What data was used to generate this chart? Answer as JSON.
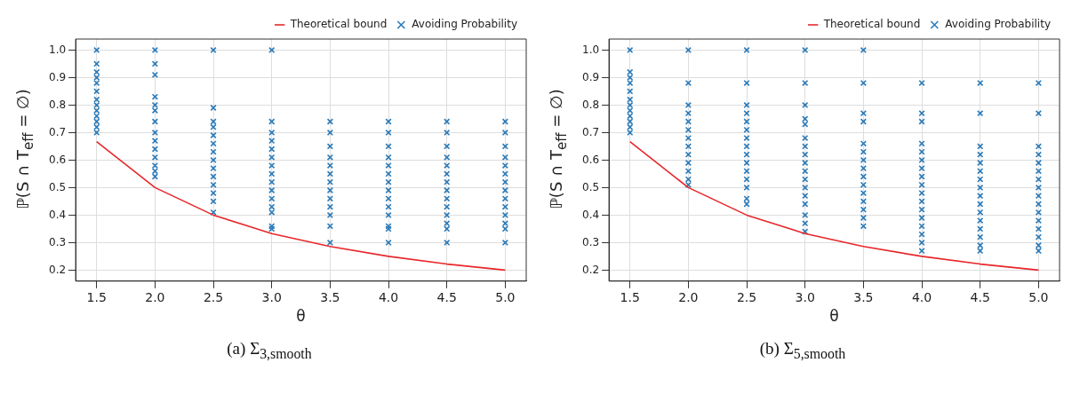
{
  "chart_data": [
    {
      "type": "scatter",
      "title": "(a) Σ$_{3,smooth}$",
      "xlabel": "θ",
      "ylabel": "ℙ(S ∩ T$_{eff}$ = ∅)",
      "xlim": [
        1.32,
        5.18
      ],
      "ylim": [
        0.16,
        1.04
      ],
      "xticks": [
        1.5,
        {
          "value": 2,
          "label": "2.0"
        },
        2.5,
        {
          "value": 3,
          "label": "3.0"
        },
        3.5,
        {
          "value": 4,
          "label": "4.0"
        },
        4.5,
        {
          "value": 5,
          "label": "5.0"
        }
      ],
      "yticks": [
        0.2,
        0.3,
        0.4,
        0.5,
        0.6,
        0.7,
        0.8,
        0.9,
        {
          "value": 1,
          "label": "1.0"
        }
      ],
      "grid": true,
      "legend": "top right",
      "series": [
        {
          "name": "Theoretical bound",
          "type": "line",
          "color": "#e8262b",
          "marker": "none",
          "x": [
            1.5,
            2,
            2.5,
            3,
            3.5,
            4,
            4.5,
            5
          ],
          "values": [
            0.667,
            0.5,
            0.4,
            0.333,
            0.286,
            0.25,
            0.222,
            0.2
          ]
        },
        {
          "name": "Avoiding Probability",
          "color": "#2a7ab8",
          "marker": "cross",
          "x": [
            1.5,
            1.5,
            1.5,
            1.5,
            1.5,
            1.5,
            1.5,
            1.5,
            1.5,
            1.5,
            1.5,
            1.5,
            1.5,
            2,
            2,
            2,
            2,
            2,
            2,
            2,
            2,
            2,
            2,
            2,
            2,
            2,
            2,
            2.5,
            2.5,
            2.5,
            2.5,
            2.5,
            2.5,
            2.5,
            2.5,
            2.5,
            2.5,
            2.5,
            2.5,
            2.5,
            2.5,
            3,
            3,
            3,
            3,
            3,
            3,
            3,
            3,
            3,
            3,
            3,
            3,
            3,
            3,
            3,
            3.5,
            3.5,
            3.5,
            3.5,
            3.5,
            3.5,
            3.5,
            3.5,
            3.5,
            3.5,
            3.5,
            3.5,
            3.5,
            4,
            4,
            4,
            4,
            4,
            4,
            4,
            4,
            4,
            4,
            4,
            4,
            4,
            4,
            4.5,
            4.5,
            4.5,
            4.5,
            4.5,
            4.5,
            4.5,
            4.5,
            4.5,
            4.5,
            4.5,
            4.5,
            4.5,
            4.5,
            5,
            5,
            5,
            5,
            5,
            5,
            5,
            5,
            5,
            5,
            5,
            5,
            5,
            5
          ],
          "values": [
            1.0,
            0.95,
            0.92,
            0.9,
            0.88,
            0.85,
            0.82,
            0.8,
            0.78,
            0.76,
            0.74,
            0.72,
            0.7,
            1.0,
            0.95,
            0.91,
            0.83,
            0.8,
            0.78,
            0.74,
            0.7,
            0.67,
            0.64,
            0.61,
            0.58,
            0.56,
            0.54,
            1.0,
            0.79,
            0.74,
            0.72,
            0.69,
            0.66,
            0.63,
            0.6,
            0.57,
            0.54,
            0.51,
            0.48,
            0.45,
            0.41,
            1.0,
            0.74,
            0.7,
            0.67,
            0.64,
            0.61,
            0.58,
            0.55,
            0.52,
            0.49,
            0.46,
            0.43,
            0.41,
            0.36,
            0.35,
            0.74,
            0.7,
            0.65,
            0.61,
            0.58,
            0.55,
            0.52,
            0.49,
            0.46,
            0.43,
            0.4,
            0.36,
            0.3,
            0.74,
            0.7,
            0.65,
            0.61,
            0.58,
            0.55,
            0.52,
            0.49,
            0.46,
            0.43,
            0.4,
            0.36,
            0.35,
            0.3,
            0.74,
            0.7,
            0.65,
            0.61,
            0.58,
            0.55,
            0.52,
            0.49,
            0.46,
            0.43,
            0.4,
            0.37,
            0.35,
            0.3,
            0.74,
            0.7,
            0.65,
            0.61,
            0.58,
            0.55,
            0.52,
            0.49,
            0.46,
            0.43,
            0.4,
            0.37,
            0.35,
            0.3
          ]
        }
      ]
    },
    {
      "type": "scatter",
      "title": "(b) Σ$_{5,smooth}$",
      "xlabel": "θ",
      "ylabel": "ℙ(S ∩ T$_{eff}$ = ∅)",
      "xlim": [
        1.32,
        5.18
      ],
      "ylim": [
        0.16,
        1.04
      ],
      "xticks": [
        1.5,
        {
          "value": 2,
          "label": "2.0"
        },
        2.5,
        {
          "value": 3,
          "label": "3.0"
        },
        3.5,
        {
          "value": 4,
          "label": "4.0"
        },
        4.5,
        {
          "value": 5,
          "label": "5.0"
        }
      ],
      "yticks": [
        0.2,
        0.3,
        0.4,
        0.5,
        0.6,
        0.7,
        0.8,
        0.9,
        {
          "value": 1,
          "label": "1.0"
        }
      ],
      "grid": true,
      "legend": "top right",
      "series": [
        {
          "name": "Theoretical bound",
          "type": "line",
          "color": "#e8262b",
          "marker": "none",
          "x": [
            1.5,
            2,
            2.5,
            3,
            3.5,
            4,
            4.5,
            5
          ],
          "values": [
            0.667,
            0.5,
            0.4,
            0.333,
            0.286,
            0.25,
            0.222,
            0.2
          ]
        },
        {
          "name": "Avoiding Probability",
          "color": "#2a7ab8",
          "marker": "cross",
          "x": [
            1.5,
            1.5,
            1.5,
            1.5,
            1.5,
            1.5,
            1.5,
            1.5,
            1.5,
            1.5,
            1.5,
            1.5,
            2,
            2,
            2,
            2,
            2,
            2,
            2,
            2,
            2,
            2,
            2,
            2,
            2,
            2.5,
            2.5,
            2.5,
            2.5,
            2.5,
            2.5,
            2.5,
            2.5,
            2.5,
            2.5,
            2.5,
            2.5,
            2.5,
            2.5,
            2.5,
            3,
            3,
            3,
            3,
            3,
            3,
            3,
            3,
            3,
            3,
            3,
            3,
            3,
            3,
            3,
            3,
            3,
            3.5,
            3.5,
            3.5,
            3.5,
            3.5,
            3.5,
            3.5,
            3.5,
            3.5,
            3.5,
            3.5,
            3.5,
            3.5,
            3.5,
            3.5,
            4,
            4,
            4,
            4,
            4,
            4,
            4,
            4,
            4,
            4,
            4,
            4,
            4,
            4,
            4,
            4,
            4,
            4.5,
            4.5,
            4.5,
            4.5,
            4.5,
            4.5,
            4.5,
            4.5,
            4.5,
            4.5,
            4.5,
            4.5,
            4.5,
            4.5,
            4.5,
            4.5,
            5,
            5,
            5,
            5,
            5,
            5,
            5,
            5,
            5,
            5,
            5,
            5,
            5,
            5,
            5,
            5
          ],
          "values": [
            1.0,
            0.92,
            0.9,
            0.88,
            0.85,
            0.82,
            0.8,
            0.78,
            0.76,
            0.74,
            0.72,
            0.7,
            1.0,
            0.88,
            0.8,
            0.77,
            0.74,
            0.71,
            0.68,
            0.65,
            0.62,
            0.59,
            0.56,
            0.53,
            0.51,
            1.0,
            0.88,
            0.8,
            0.77,
            0.74,
            0.71,
            0.68,
            0.65,
            0.62,
            0.59,
            0.56,
            0.53,
            0.5,
            0.46,
            0.44,
            1.0,
            0.88,
            0.8,
            0.75,
            0.73,
            0.68,
            0.65,
            0.62,
            0.59,
            0.56,
            0.53,
            0.5,
            0.47,
            0.44,
            0.4,
            0.37,
            0.34,
            1.0,
            0.88,
            0.77,
            0.74,
            0.66,
            0.63,
            0.6,
            0.57,
            0.54,
            0.51,
            0.48,
            0.45,
            0.42,
            0.39,
            0.36,
            0.88,
            0.77,
            0.74,
            0.66,
            0.63,
            0.6,
            0.57,
            0.54,
            0.51,
            0.48,
            0.45,
            0.42,
            0.39,
            0.36,
            0.33,
            0.3,
            0.27,
            0.88,
            0.77,
            0.65,
            0.62,
            0.59,
            0.56,
            0.53,
            0.5,
            0.47,
            0.44,
            0.41,
            0.38,
            0.35,
            0.32,
            0.29,
            0.27,
            0.88,
            0.77,
            0.65,
            0.62,
            0.59,
            0.56,
            0.53,
            0.5,
            0.47,
            0.44,
            0.41,
            0.38,
            0.35,
            0.32,
            0.29,
            0.27
          ]
        }
      ]
    }
  ]
}
